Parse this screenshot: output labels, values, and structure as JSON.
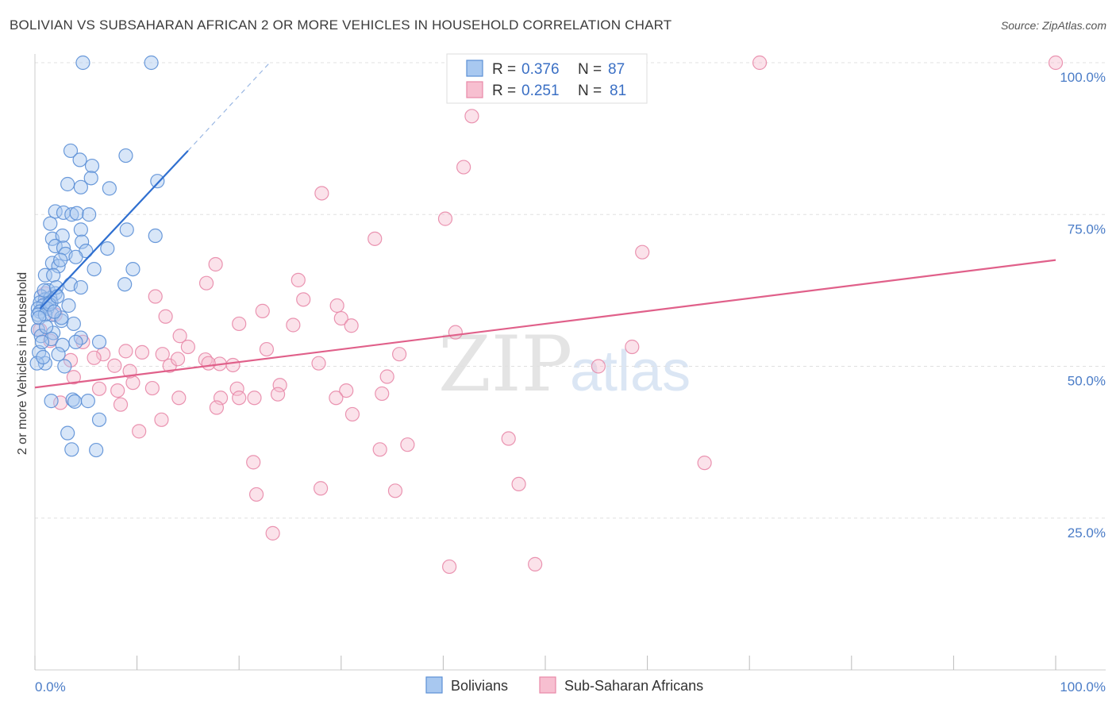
{
  "title": "BOLIVIAN VS SUBSAHARAN AFRICAN 2 OR MORE VEHICLES IN HOUSEHOLD CORRELATION CHART",
  "source": "Source: ZipAtlas.com",
  "watermark": {
    "zip": "ZIP",
    "atlas": "atlas"
  },
  "colors": {
    "blue_fill": "#a8c8f0",
    "blue_stroke": "#5b8fd6",
    "blue_line": "#2f6fd0",
    "pink_fill": "#f7bfd0",
    "pink_stroke": "#e888a8",
    "pink_line": "#e0608a",
    "grid": "#e0e0e0",
    "axis_text": "#4a7cc7"
  },
  "legend": {
    "rows": [
      {
        "r_label": "R =",
        "r_value": "0.376",
        "n_label": "N =",
        "n_value": "87"
      },
      {
        "r_label": "R =",
        "r_value": "0.251",
        "n_label": "N =",
        "n_value": "81"
      }
    ]
  },
  "bottom_legend": [
    "Bolivians",
    "Sub-Saharan Africans"
  ],
  "chart_data": {
    "type": "scatter",
    "title": "BOLIVIAN VS SUBSAHARAN AFRICAN 2 OR MORE VEHICLES IN HOUSEHOLD CORRELATION CHART",
    "xlabel": "",
    "ylabel": "2 or more Vehicles in Household",
    "xlim": [
      0,
      100
    ],
    "ylim": [
      0,
      102
    ],
    "x_tick_labels": [
      "0.0%",
      "100.0%"
    ],
    "y_ticks": [
      25,
      50,
      75,
      100
    ],
    "y_tick_labels": [
      "25.0%",
      "50.0%",
      "75.0%",
      "100.0%"
    ],
    "series": [
      {
        "name": "Bolivians",
        "r": 0.376,
        "n": 87,
        "trend": {
          "x0": 0.5,
          "y0": 59.5,
          "x1": 15,
          "y1": 85.5,
          "dash_x1": 23,
          "dash_y1": 100
        },
        "points": [
          [
            4.7,
            100
          ],
          [
            11.4,
            100
          ],
          [
            3.5,
            85.5
          ],
          [
            4.4,
            84
          ],
          [
            5.6,
            83
          ],
          [
            8.9,
            84.7
          ],
          [
            3.2,
            80
          ],
          [
            5.5,
            81
          ],
          [
            4.5,
            79.5
          ],
          [
            7.3,
            79.3
          ],
          [
            12.0,
            80.5
          ],
          [
            2.0,
            75.5
          ],
          [
            2.8,
            75.3
          ],
          [
            3.6,
            75
          ],
          [
            4.1,
            75.2
          ],
          [
            5.3,
            75
          ],
          [
            1.5,
            73.5
          ],
          [
            4.5,
            72.5
          ],
          [
            9.0,
            72.5
          ],
          [
            11.8,
            71.5
          ],
          [
            1.7,
            71
          ],
          [
            2.7,
            71.5
          ],
          [
            4.6,
            70.5
          ],
          [
            2.0,
            69.8
          ],
          [
            2.8,
            69.5
          ],
          [
            3.0,
            68.5
          ],
          [
            5.0,
            69
          ],
          [
            7.1,
            69.4
          ],
          [
            4.0,
            68
          ],
          [
            1.7,
            67
          ],
          [
            2.3,
            66.5
          ],
          [
            2.5,
            67.5
          ],
          [
            9.6,
            66
          ],
          [
            1.0,
            65
          ],
          [
            1.8,
            65
          ],
          [
            3.5,
            63.5
          ],
          [
            4.5,
            63
          ],
          [
            8.8,
            63.5
          ],
          [
            1.3,
            62.5
          ],
          [
            2.0,
            62
          ],
          [
            0.6,
            61.5
          ],
          [
            1.0,
            61
          ],
          [
            1.5,
            61.2
          ],
          [
            0.5,
            60.5
          ],
          [
            0.8,
            60
          ],
          [
            1.6,
            60.5
          ],
          [
            0.3,
            59.5
          ],
          [
            0.5,
            59
          ],
          [
            1.2,
            59.5
          ],
          [
            1.7,
            58.5
          ],
          [
            0.3,
            58.5
          ],
          [
            1.0,
            58.5
          ],
          [
            2.6,
            57.5
          ],
          [
            0.3,
            56
          ],
          [
            1.8,
            55.5
          ],
          [
            0.6,
            55
          ],
          [
            1.6,
            54.5
          ],
          [
            4.5,
            54.7
          ],
          [
            6.3,
            54
          ],
          [
            2.7,
            53.5
          ],
          [
            4.0,
            54
          ],
          [
            0.4,
            52.3
          ],
          [
            2.3,
            52
          ],
          [
            1.0,
            50.5
          ],
          [
            2.9,
            50
          ],
          [
            3.7,
            44.5
          ],
          [
            3.9,
            44.2
          ],
          [
            5.2,
            44.3
          ],
          [
            1.6,
            44.3
          ],
          [
            6.3,
            41.2
          ],
          [
            3.2,
            39
          ],
          [
            3.6,
            36.3
          ],
          [
            6.0,
            36.2
          ],
          [
            0.2,
            50.5
          ],
          [
            0.8,
            51.5
          ],
          [
            0.4,
            58.0
          ],
          [
            0.9,
            62.5
          ],
          [
            1.4,
            60.2
          ],
          [
            2.1,
            63.0
          ],
          [
            3.3,
            60.0
          ],
          [
            5.8,
            66.0
          ],
          [
            2.6,
            58.0
          ],
          [
            1.1,
            56.5
          ],
          [
            0.7,
            54.0
          ],
          [
            3.8,
            57.0
          ],
          [
            2.2,
            61.5
          ],
          [
            1.9,
            59.0
          ]
        ]
      },
      {
        "name": "Sub-Saharan Africans",
        "r": 0.251,
        "n": 81,
        "trend": {
          "x0": 0,
          "y0": 46.5,
          "x1": 100,
          "y1": 67.5
        },
        "points": [
          [
            71,
            100
          ],
          [
            100,
            100
          ],
          [
            42.8,
            91.2
          ],
          [
            42.0,
            82.8
          ],
          [
            28.1,
            78.5
          ],
          [
            40.2,
            74.3
          ],
          [
            33.3,
            71
          ],
          [
            59.5,
            68.8
          ],
          [
            17.7,
            66.8
          ],
          [
            16.8,
            63.7
          ],
          [
            25.8,
            64.2
          ],
          [
            11.8,
            61.5
          ],
          [
            26.3,
            61
          ],
          [
            29.6,
            60
          ],
          [
            22.3,
            59.1
          ],
          [
            12.8,
            58.2
          ],
          [
            30.0,
            57.9
          ],
          [
            20.0,
            57
          ],
          [
            25.3,
            56.8
          ],
          [
            31.0,
            56.7
          ],
          [
            41.2,
            55.6
          ],
          [
            14.2,
            55
          ],
          [
            35.7,
            52.0
          ],
          [
            58.5,
            53.2
          ],
          [
            8.9,
            52.5
          ],
          [
            10.5,
            52.3
          ],
          [
            15.0,
            53.2
          ],
          [
            22.7,
            52.8
          ],
          [
            6.7,
            52
          ],
          [
            5.8,
            51.4
          ],
          [
            16.7,
            51.1
          ],
          [
            18.1,
            50.4
          ],
          [
            13.2,
            50.1
          ],
          [
            19.4,
            50.2
          ],
          [
            14.0,
            51.2
          ],
          [
            3.5,
            51.0
          ],
          [
            1.5,
            54.2
          ],
          [
            7.8,
            50.1
          ],
          [
            55.2,
            50.0
          ],
          [
            34.5,
            48.3
          ],
          [
            3.8,
            48.2
          ],
          [
            9.6,
            47.3
          ],
          [
            19.8,
            46.3
          ],
          [
            20.0,
            44.8
          ],
          [
            11.5,
            46.4
          ],
          [
            8.1,
            46.0
          ],
          [
            6.3,
            46.3
          ],
          [
            24.0,
            46.9
          ],
          [
            30.5,
            46.0
          ],
          [
            34.0,
            45.5
          ],
          [
            14.1,
            44.8
          ],
          [
            18.2,
            44.8
          ],
          [
            21.5,
            44.8
          ],
          [
            23.8,
            45.4
          ],
          [
            29.5,
            44.8
          ],
          [
            8.4,
            43.7
          ],
          [
            17.8,
            43.2
          ],
          [
            2.5,
            44.0
          ],
          [
            12.4,
            41.2
          ],
          [
            31.1,
            42.1
          ],
          [
            10.2,
            39.3
          ],
          [
            46.4,
            38.1
          ],
          [
            36.5,
            37.1
          ],
          [
            33.8,
            36.3
          ],
          [
            21.4,
            34.2
          ],
          [
            65.6,
            34.1
          ],
          [
            47.4,
            30.6
          ],
          [
            28.0,
            29.9
          ],
          [
            35.3,
            29.5
          ],
          [
            21.7,
            28.9
          ],
          [
            23.3,
            22.5
          ],
          [
            40.6,
            17.0
          ],
          [
            49.0,
            17.4
          ],
          [
            1.0,
            62.0
          ],
          [
            2.0,
            58.5
          ],
          [
            0.5,
            56.0
          ],
          [
            4.7,
            54.0
          ],
          [
            17.0,
            50.5
          ],
          [
            12.5,
            52.0
          ],
          [
            9.3,
            49.2
          ],
          [
            27.8,
            50.5
          ]
        ]
      }
    ]
  }
}
